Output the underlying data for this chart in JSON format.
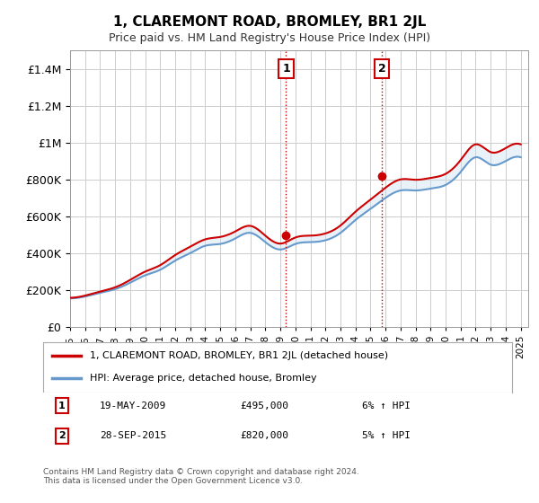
{
  "title": "1, CLAREMONT ROAD, BROMLEY, BR1 2JL",
  "subtitle": "Price paid vs. HM Land Registry's House Price Index (HPI)",
  "legend_line1": "1, CLAREMONT ROAD, BROMLEY, BR1 2JL (detached house)",
  "legend_line2": "HPI: Average price, detached house, Bromley",
  "transaction1_label": "1",
  "transaction1_date": "19-MAY-2009",
  "transaction1_price": "£495,000",
  "transaction1_hpi": "6% ↑ HPI",
  "transaction1_year": 2009.38,
  "transaction1_value": 495000,
  "transaction2_label": "2",
  "transaction2_date": "28-SEP-2015",
  "transaction2_price": "£820,000",
  "transaction2_hpi": "5% ↑ HPI",
  "transaction2_year": 2015.75,
  "transaction2_value": 820000,
  "footnote": "Contains HM Land Registry data © Crown copyright and database right 2024.\nThis data is licensed under the Open Government Licence v3.0.",
  "red_color": "#cc0000",
  "blue_color": "#6699cc",
  "fill_color": "#cce0f0",
  "background_color": "#ffffff",
  "grid_color": "#cccccc",
  "ylim": [
    0,
    1500000
  ],
  "xlim_start": 1995,
  "xlim_end": 2025.5
}
